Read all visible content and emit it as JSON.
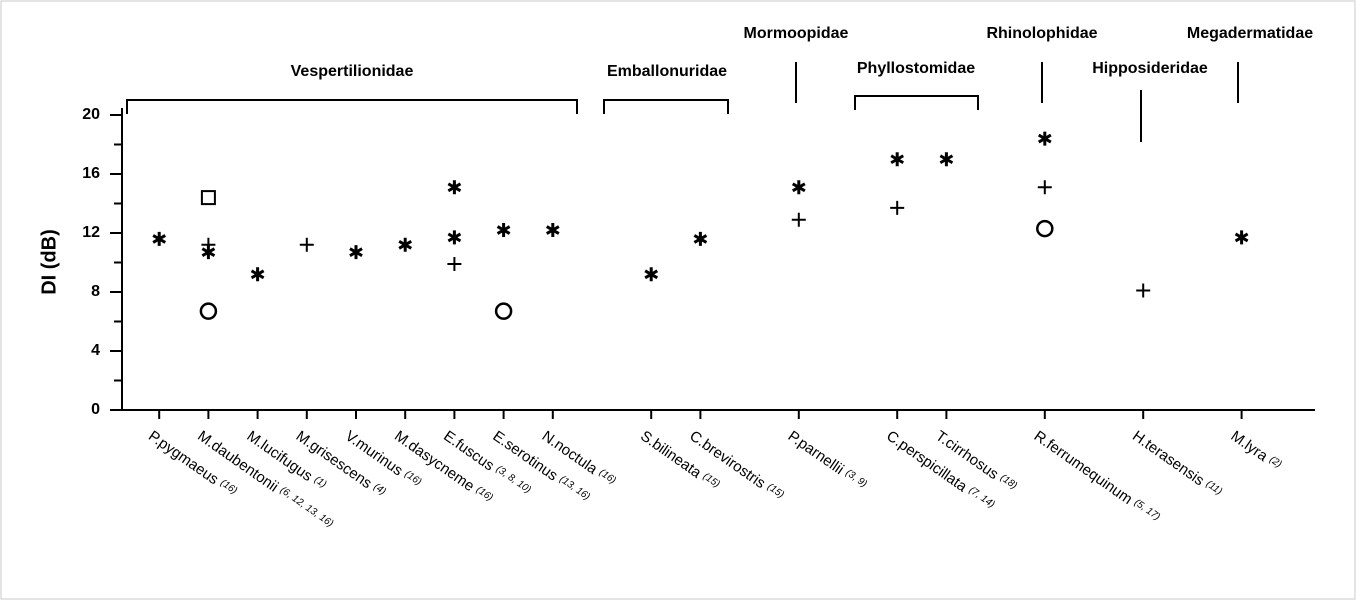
{
  "chart_data": {
    "type": "scatter",
    "ylabel": "DI (dB)",
    "ylim": [
      0,
      20
    ],
    "yticks": [
      0,
      4,
      8,
      12,
      16,
      20
    ],
    "categories": [
      "P.pygmaeus",
      "M.daubentonii",
      "M.lucifugus",
      "M.grisescens",
      "V.murinus",
      "M.dasycneme",
      "E.fuscus",
      "E.serotinus",
      "N.noctula",
      "S.bilineata",
      "C.brevirostris",
      "P.parnellii",
      "C.perspicillata",
      "T.cirrhosus",
      "R.ferrumequinum",
      "H.terasensis",
      "M.lyra"
    ],
    "references": [
      "(16)",
      "(6, 12, 13, 16)",
      "(1)",
      "(4)",
      "(16)",
      "(16)",
      "(3, 8, 10)",
      "(13, 16)",
      "(16)",
      "(15)",
      "(15)",
      "(3, 9)",
      "(7, 14)",
      "(18)",
      "(5, 17)",
      "(11)",
      "(2)"
    ],
    "families": [
      "Vespertilionidae",
      "Emballonuridae",
      "Mormoopidae",
      "Phyllostomidae",
      "Rhinolophidae",
      "Hipposideridae",
      "Megadermatidae"
    ],
    "series": [
      {
        "marker": "asterisk",
        "color": "#000000",
        "values": [
          11.6,
          10.7,
          9.2,
          null,
          10.7,
          11.2,
          15.1,
          12.2,
          12.2,
          9.2,
          11.6,
          15.1,
          17.0,
          17.0,
          18.4,
          null,
          11.7
        ]
      },
      {
        "marker": "asterisk",
        "color": "#000000",
        "values": [
          null,
          null,
          null,
          null,
          null,
          null,
          11.7,
          null,
          null,
          null,
          null,
          null,
          null,
          null,
          null,
          null,
          null
        ]
      },
      {
        "marker": "plus",
        "color": "#000000",
        "values": [
          null,
          11.2,
          null,
          11.2,
          null,
          null,
          9.9,
          null,
          null,
          null,
          null,
          12.9,
          13.7,
          null,
          15.1,
          8.1,
          null
        ]
      },
      {
        "marker": "square",
        "color": "#000000",
        "values": [
          null,
          14.4,
          null,
          null,
          null,
          null,
          null,
          null,
          null,
          null,
          null,
          null,
          null,
          null,
          null,
          null,
          null
        ]
      },
      {
        "marker": "circle",
        "color": "#000000",
        "values": [
          null,
          6.7,
          null,
          null,
          null,
          null,
          null,
          6.7,
          null,
          null,
          null,
          null,
          null,
          null,
          12.3,
          null,
          null
        ]
      }
    ]
  }
}
